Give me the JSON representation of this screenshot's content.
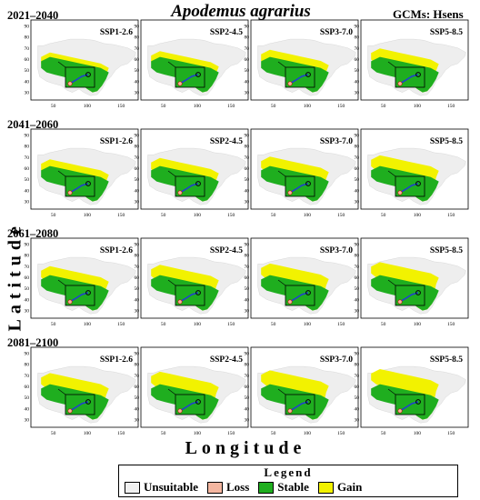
{
  "title": "Apodemus agrarius",
  "gcm_label": "GCMs: Hsens",
  "y_axis_title": "Latitude",
  "x_axis_title": "Longitude",
  "periods": [
    "2021–2040",
    "2041–2060",
    "2061–2080",
    "2081–2100"
  ],
  "scenarios": [
    "SSP1-2.6",
    "SSP2-4.5",
    "SSP3-7.0",
    "SSP5-8.5"
  ],
  "x_ticks": [
    "50",
    "100",
    "150"
  ],
  "y_ticks": [
    "30",
    "40",
    "50",
    "60",
    "70",
    "80",
    "90"
  ],
  "legend": {
    "title": "Legend",
    "items": [
      {
        "label": "Unsuitable",
        "color": "#f0f0f0"
      },
      {
        "label": "Loss",
        "color": "#f4b6a0"
      },
      {
        "label": "Stable",
        "color": "#1fae1f"
      },
      {
        "label": "Gain",
        "color": "#f2f200"
      }
    ]
  },
  "colors": {
    "unsuitable": "#eeeeee",
    "stable": "#1fae1f",
    "gain": "#f2f200",
    "loss": "#f4b6a0",
    "range_line": "#1f3fd0"
  }
}
